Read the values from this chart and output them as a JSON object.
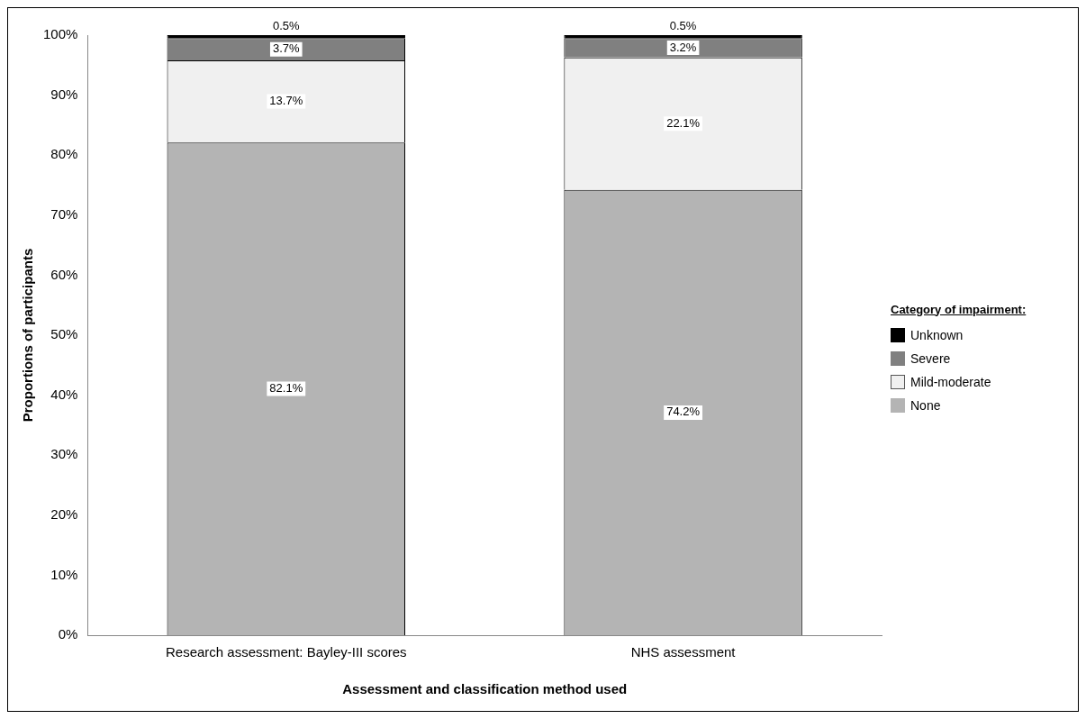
{
  "chart_data": {
    "type": "bar",
    "stacked": true,
    "xlabel": "Assessment and classification method used",
    "ylabel": "Proportions of participants",
    "legend_title": "Category of impairment:",
    "legend": "right",
    "grid": false,
    "categories": [
      "Research assessment: Bayley-III scores",
      "NHS assessment"
    ],
    "ylim": [
      0,
      100
    ],
    "yticks": [
      {
        "value": 0,
        "label": "0%"
      },
      {
        "value": 10,
        "label": "10%"
      },
      {
        "value": 20,
        "label": "20%"
      },
      {
        "value": 30,
        "label": "30%"
      },
      {
        "value": 40,
        "label": "40%"
      },
      {
        "value": 50,
        "label": "50%"
      },
      {
        "value": 60,
        "label": "60%"
      },
      {
        "value": 70,
        "label": "70%"
      },
      {
        "value": 80,
        "label": "80%"
      },
      {
        "value": 90,
        "label": "90%"
      },
      {
        "value": 100,
        "label": "100%"
      }
    ],
    "series": [
      {
        "name": "None",
        "color": "#b4b4b4",
        "values": [
          82.1,
          74.2
        ],
        "value_labels": [
          "82.1%",
          "74.2%"
        ]
      },
      {
        "name": "Mild-moderate",
        "color": "#f0f0f0",
        "values": [
          13.7,
          22.1
        ],
        "value_labels": [
          "13.7%",
          "22.1%"
        ]
      },
      {
        "name": "Severe",
        "color": "#808080",
        "values": [
          3.7,
          3.2
        ],
        "value_labels": [
          "3.7%",
          "3.2%"
        ]
      },
      {
        "name": "Unknown",
        "color": "#000000",
        "values": [
          0.5,
          0.5
        ],
        "value_labels": [
          "0.5%",
          "0.5%"
        ]
      }
    ]
  }
}
